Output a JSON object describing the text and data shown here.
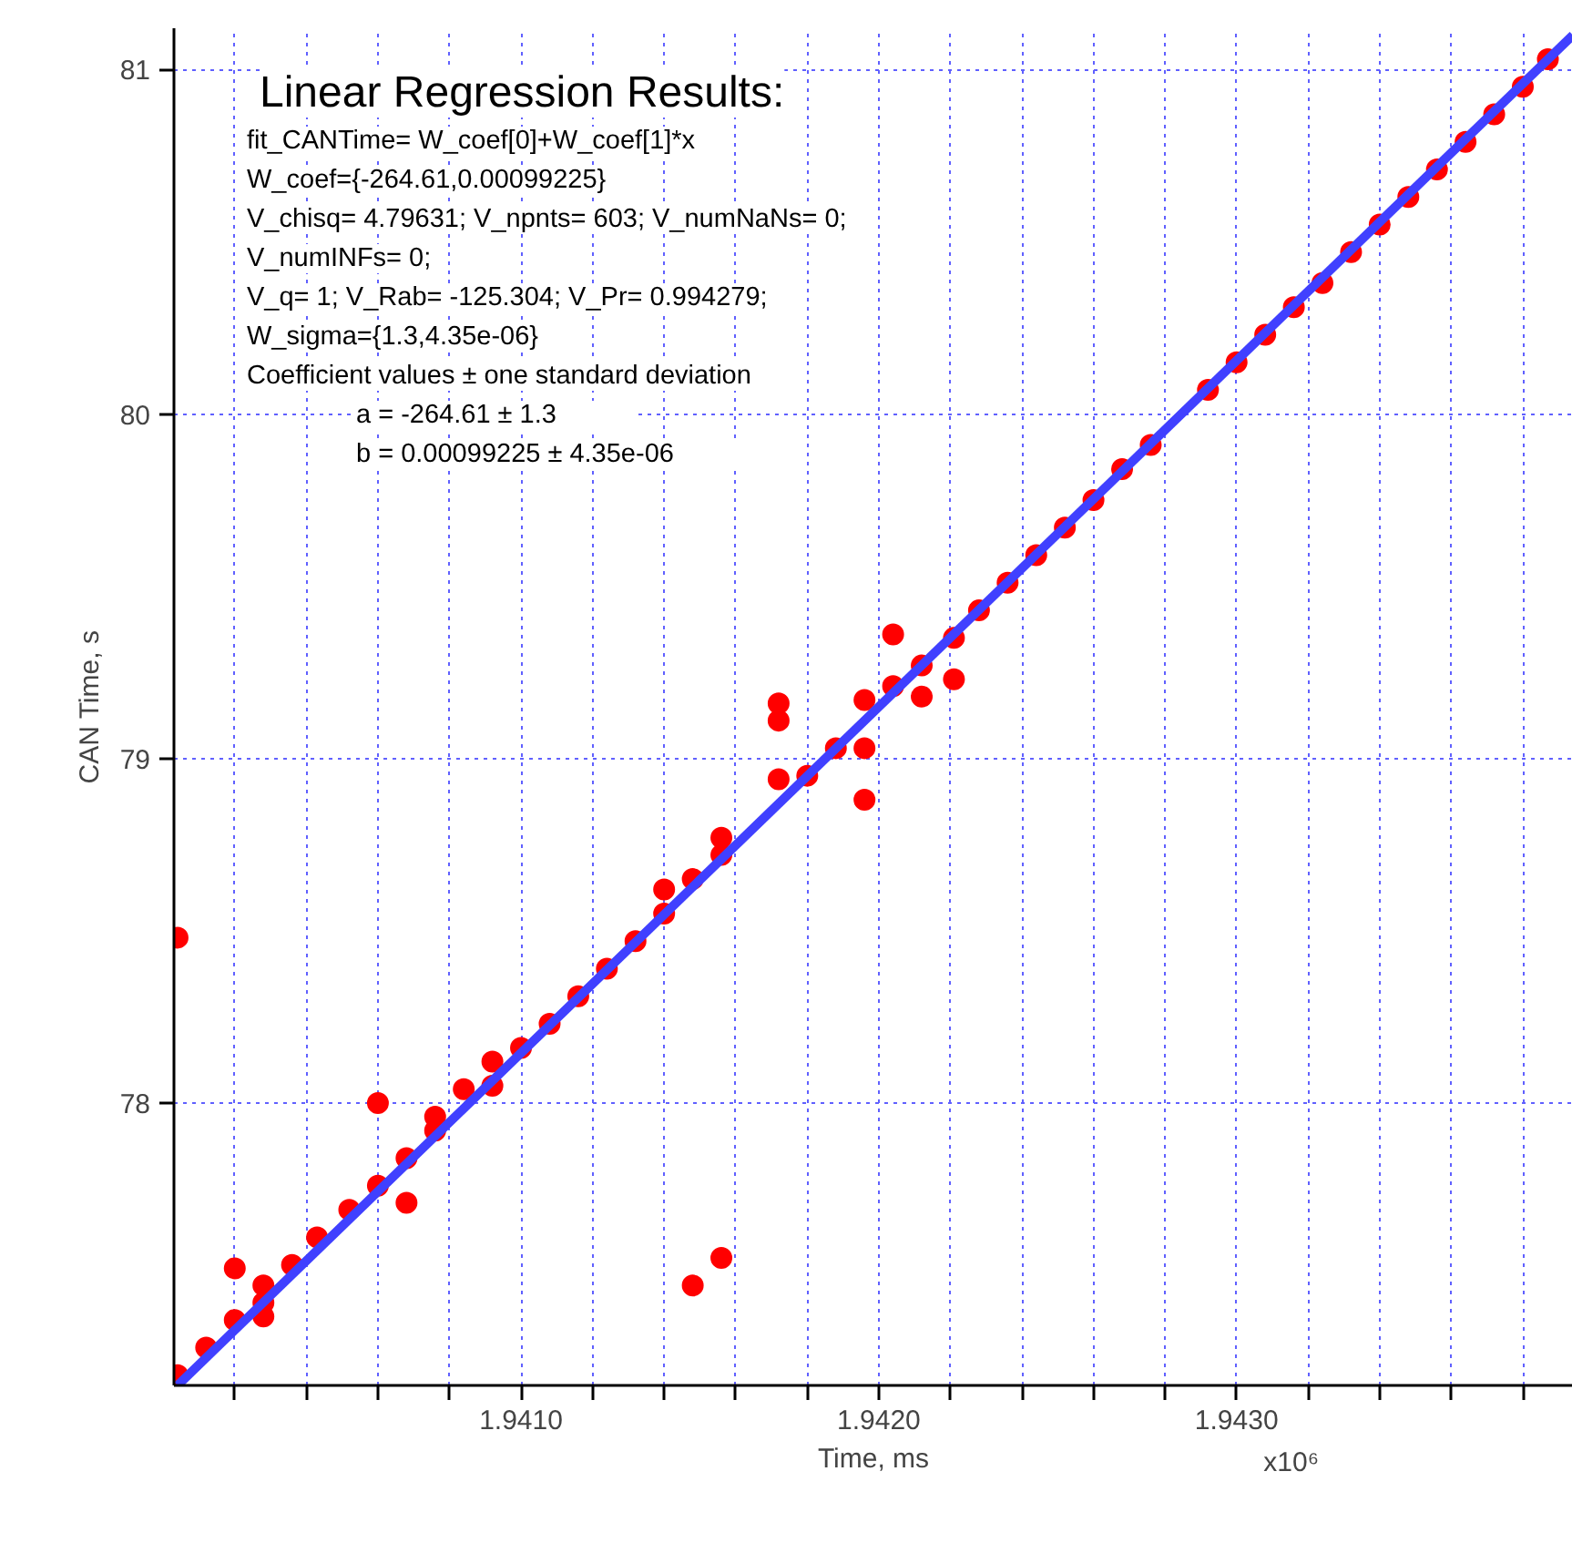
{
  "chart_data": {
    "type": "scatter",
    "xlabel": "Time, ms",
    "ylabel": "CAN Time, s",
    "annotations": [
      "Linear Regression Results:",
      "fit_CANTime= W_coef[0]+W_coef[1]*x",
      "W_coef={-264.61,0.00099225}",
      "V_chisq= 4.79631; V_npnts= 603; V_numNaNs= 0;",
      "V_numINFs= 0;",
      "V_q= 1; V_Rab= -125.304; V_Pr= 0.994279;",
      "W_sigma={1.3,4.35e-06}",
      "Coefficient values ± one standard deviation",
      "a            = -264.61 ± 1.3",
      "b            = 0.00099225 ± 4.35e-06",
      "x10⁶"
    ],
    "xlim": [
      1.94003,
      1.94394
    ],
    "ylim": [
      77.18,
      81.12
    ],
    "xticks": [
      {
        "value": 1.9402,
        "label": null
      },
      {
        "value": 1.9404,
        "label": null
      },
      {
        "value": 1.9406,
        "label": null
      },
      {
        "value": 1.9408,
        "label": null
      },
      {
        "value": 1.941,
        "label": "1.9410"
      },
      {
        "value": 1.9412,
        "label": null
      },
      {
        "value": 1.9414,
        "label": null
      },
      {
        "value": 1.9416,
        "label": null
      },
      {
        "value": 1.9418,
        "label": null
      },
      {
        "value": 1.942,
        "label": "1.9420"
      },
      {
        "value": 1.9422,
        "label": null
      },
      {
        "value": 1.9424,
        "label": null
      },
      {
        "value": 1.9426,
        "label": null
      },
      {
        "value": 1.9428,
        "label": null
      },
      {
        "value": 1.943,
        "label": "1.9430"
      },
      {
        "value": 1.9432,
        "label": null
      },
      {
        "value": 1.9434,
        "label": null
      },
      {
        "value": 1.9436,
        "label": null
      },
      {
        "value": 1.9438,
        "label": null
      }
    ],
    "yticks": [
      78,
      79,
      80,
      81
    ],
    "grid": true,
    "series": [
      {
        "color": "#ff0000",
        "marker": "circle",
        "x": [
          1.94004,
          1.94004,
          1.94012,
          1.9402,
          1.9402,
          1.94028,
          1.94028,
          1.94028,
          1.94036,
          1.94043,
          1.94052,
          1.9406,
          1.9406,
          1.94068,
          1.94068,
          1.94076,
          1.94076,
          1.94084,
          1.94092,
          1.94092,
          1.941,
          1.94108,
          1.94116,
          1.94124,
          1.94132,
          1.9414,
          1.9414,
          1.94148,
          1.94148,
          1.94156,
          1.94156,
          1.94156,
          1.94172,
          1.94172,
          1.94172,
          1.9418,
          1.94188,
          1.94196,
          1.94196,
          1.94196,
          1.94204,
          1.94204,
          1.94212,
          1.94212,
          1.94221,
          1.94221,
          1.94228,
          1.94236,
          1.94244,
          1.94252,
          1.9426,
          1.94268,
          1.94276,
          1.94292,
          1.943,
          1.94308,
          1.94316,
          1.94324,
          1.94332,
          1.9434,
          1.94348,
          1.94356,
          1.94364,
          1.94372,
          1.9438,
          1.94387
        ],
        "values": [
          77.21,
          78.48,
          77.29,
          77.37,
          77.52,
          77.42,
          77.38,
          77.47,
          77.53,
          77.61,
          77.69,
          77.76,
          78.0,
          77.71,
          77.84,
          77.92,
          77.96,
          78.04,
          78.12,
          78.05,
          78.16,
          78.23,
          78.31,
          78.39,
          78.47,
          78.62,
          78.55,
          78.65,
          77.47,
          78.77,
          78.72,
          77.55,
          78.94,
          79.11,
          79.16,
          78.95,
          79.03,
          79.03,
          79.17,
          78.88,
          79.21,
          79.36,
          79.27,
          79.18,
          79.35,
          79.23,
          79.43,
          79.51,
          79.59,
          79.67,
          79.75,
          79.84,
          79.91,
          80.07,
          80.15,
          80.23,
          80.31,
          80.38,
          80.47,
          80.55,
          80.63,
          80.71,
          80.79,
          80.87,
          80.95,
          81.03
        ]
      },
      {
        "type": "line",
        "marker": "none",
        "color": "#4040ff",
        "x": [
          1.94004,
          1.94394
        ],
        "values": [
          77.18,
          81.1
        ]
      }
    ]
  }
}
